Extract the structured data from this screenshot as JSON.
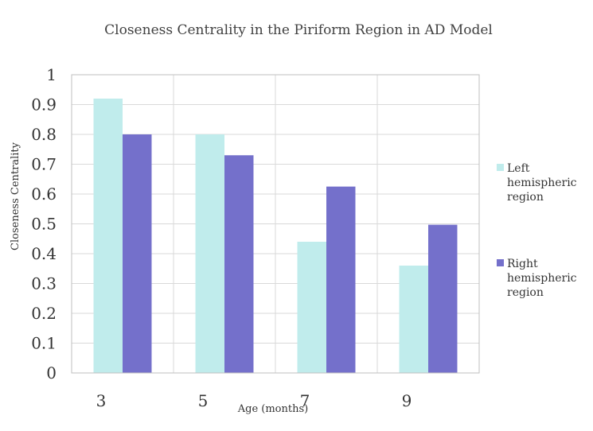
{
  "chart_data": {
    "type": "bar",
    "title": "Closeness Centrality in the Piriform Region in AD Model",
    "xlabel": "Age (months)",
    "ylabel": "Closeness Centrality",
    "categories": [
      "3",
      "5",
      "7",
      "9"
    ],
    "ylim": [
      0,
      1
    ],
    "yticks": [
      "0",
      "0.1",
      "0.2",
      "0.3",
      "0.4",
      "0.5",
      "0.6",
      "0.7",
      "0.8",
      "0.9",
      "1"
    ],
    "grid": true,
    "legend_position": "right",
    "series": [
      {
        "name": "Left hemispheric region",
        "legend_lines": [
          "Left",
          "hemispheric",
          "region"
        ],
        "color": "#c0ecec",
        "values": [
          0.92,
          0.8,
          0.44,
          0.36
        ]
      },
      {
        "name": "Right hemispheric region",
        "legend_lines": [
          "Right",
          "hemispheric",
          "region"
        ],
        "color": "#7470cb",
        "values": [
          0.8,
          0.73,
          0.625,
          0.497
        ]
      }
    ]
  },
  "colors": {
    "grid": "#d9d9d9",
    "border": "#bfbfbf",
    "text": "#333333"
  }
}
